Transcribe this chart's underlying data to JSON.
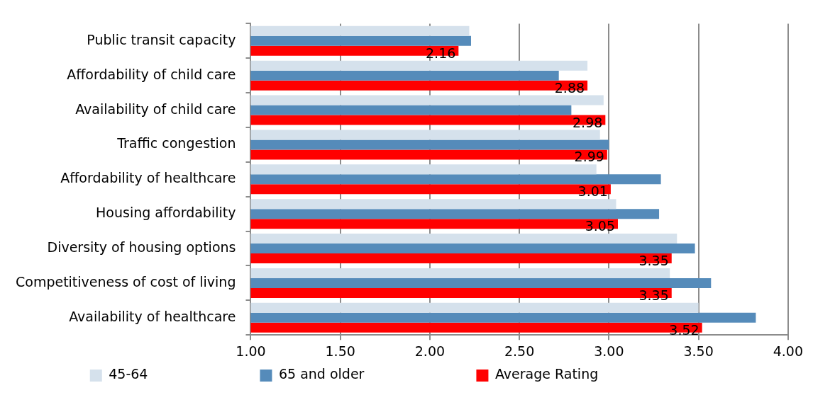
{
  "chart_data": {
    "type": "bar",
    "orientation": "horizontal",
    "categories": [
      "Public transit capacity",
      "Affordability of child care",
      "Availability of child care",
      "Traffic congestion",
      "Affordability of healthcare",
      "Housing affordability",
      "Diversity of housing options",
      "Competitiveness of cost of living",
      "Availability of healthcare"
    ],
    "series": [
      {
        "name": "45-64",
        "color": "#d5e1ec",
        "values": [
          2.22,
          2.88,
          2.97,
          2.95,
          2.93,
          3.04,
          3.38,
          3.34,
          3.5
        ]
      },
      {
        "name": "65 and older",
        "color": "#558bba",
        "values": [
          2.23,
          2.72,
          2.79,
          3.0,
          3.29,
          3.28,
          3.48,
          3.57,
          3.82
        ]
      },
      {
        "name": "Average Rating",
        "color": "#ff0000",
        "values": [
          2.16,
          2.88,
          2.98,
          2.99,
          3.01,
          3.05,
          3.35,
          3.35,
          3.52
        ],
        "value_labels": [
          "2.16",
          "2.88",
          "2.98",
          "2.99",
          "3.01",
          "3.05",
          "3.35",
          "3.35",
          "3.52"
        ]
      }
    ],
    "xlim": [
      1,
      4
    ],
    "xticks": [
      {
        "value": 1,
        "label": "1.00"
      },
      {
        "value": 1.5,
        "label": "1.50"
      },
      {
        "value": 2,
        "label": "2.00"
      },
      {
        "value": 2.5,
        "label": "2.50"
      },
      {
        "value": 3,
        "label": "3.00"
      },
      {
        "value": 3.5,
        "label": "3.50"
      },
      {
        "value": 4,
        "label": "4.00"
      }
    ],
    "grid": "x",
    "legend": "bottom"
  }
}
